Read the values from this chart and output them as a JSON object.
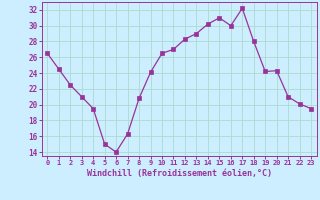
{
  "x": [
    0,
    1,
    2,
    3,
    4,
    5,
    6,
    7,
    8,
    9,
    10,
    11,
    12,
    13,
    14,
    15,
    16,
    17,
    18,
    19,
    20,
    21,
    22,
    23
  ],
  "y": [
    26.5,
    24.5,
    22.5,
    21.0,
    19.5,
    15.0,
    14.0,
    16.3,
    20.8,
    24.1,
    26.5,
    27.0,
    28.3,
    29.0,
    30.2,
    31.0,
    30.0,
    32.2,
    28.0,
    24.2,
    24.3,
    21.0,
    20.1,
    19.5
  ],
  "line_color": "#993399",
  "marker": "s",
  "marker_size": 2.5,
  "bg_color": "#cceeff",
  "grid_color": "#aaddcc",
  "xlabel": "Windchill (Refroidissement éolien,°C)",
  "xlabel_color": "#993399",
  "tick_color": "#993399",
  "label_color": "#993399",
  "ylim": [
    13.5,
    33
  ],
  "yticks": [
    14,
    16,
    18,
    20,
    22,
    24,
    26,
    28,
    30,
    32
  ],
  "xlim": [
    -0.5,
    23.5
  ],
  "xticks": [
    0,
    1,
    2,
    3,
    4,
    5,
    6,
    7,
    8,
    9,
    10,
    11,
    12,
    13,
    14,
    15,
    16,
    17,
    18,
    19,
    20,
    21,
    22,
    23
  ],
  "xtick_labels": [
    "0",
    "1",
    "2",
    "3",
    "4",
    "5",
    "6",
    "7",
    "8",
    "9",
    "10",
    "11",
    "12",
    "13",
    "14",
    "15",
    "16",
    "17",
    "18",
    "19",
    "20",
    "21",
    "22",
    "23"
  ]
}
